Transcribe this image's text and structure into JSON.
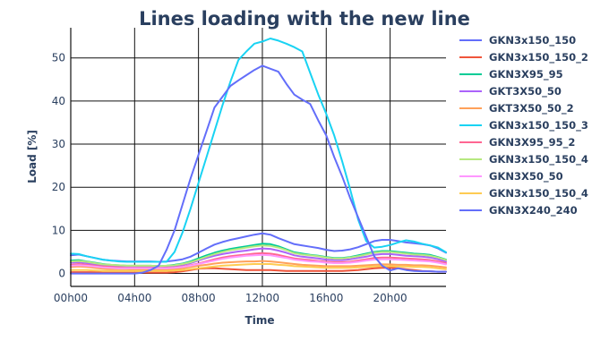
{
  "chart_data": {
    "type": "line",
    "title": "Lines loading with the new line",
    "xlabel": "Time",
    "ylabel": "Load [%]",
    "xlim": [
      0,
      23.5
    ],
    "ylim": [
      -3,
      57
    ],
    "x_ticks": [
      0,
      4,
      8,
      12,
      16,
      20
    ],
    "x_tick_labels": [
      "00h00",
      "04h00",
      "08h00",
      "12h00",
      "16h00",
      "20h00"
    ],
    "y_ticks": [
      0,
      10,
      20,
      30,
      40,
      50
    ],
    "y_tick_labels": [
      "0",
      "10",
      "20",
      "30",
      "40",
      "50"
    ],
    "grid": true,
    "legend_position": "right",
    "x": [
      0,
      0.5,
      1,
      1.5,
      2,
      2.5,
      3,
      3.5,
      4,
      4.5,
      5,
      5.5,
      6,
      6.5,
      7,
      7.5,
      8,
      8.5,
      9,
      9.5,
      10,
      10.5,
      11,
      11.5,
      12,
      12.5,
      13,
      13.5,
      14,
      14.5,
      15,
      15.5,
      16,
      16.5,
      17,
      17.5,
      18,
      18.5,
      19,
      19.5,
      20,
      20.5,
      21,
      21.5,
      22,
      22.5,
      23,
      23.5
    ],
    "series": [
      {
        "name": "GKN3x150_150",
        "color": "#636efa",
        "values": [
          4.2,
          4.4,
          4.0,
          3.6,
          3.2,
          3.0,
          2.9,
          2.8,
          2.8,
          2.8,
          2.8,
          2.7,
          2.8,
          3.0,
          3.3,
          3.9,
          4.8,
          5.8,
          6.7,
          7.3,
          7.8,
          8.2,
          8.6,
          9.0,
          9.3,
          9.0,
          8.2,
          7.5,
          6.8,
          6.5,
          6.2,
          5.9,
          5.5,
          5.2,
          5.3,
          5.6,
          6.1,
          6.8,
          7.5,
          7.8,
          7.8,
          7.5,
          7.2,
          7.0,
          6.8,
          6.5,
          5.8,
          4.8
        ]
      },
      {
        "name": "GKN3x150_150_2",
        "color": "#ef553b",
        "values": [
          0.3,
          0.3,
          0.3,
          0.3,
          0.2,
          0.2,
          0.2,
          0.2,
          0.2,
          0.2,
          0.2,
          0.2,
          0.2,
          0.3,
          0.5,
          0.8,
          1.1,
          1.2,
          1.2,
          1.1,
          1.0,
          0.9,
          0.8,
          0.8,
          0.8,
          0.8,
          0.7,
          0.6,
          0.6,
          0.6,
          0.6,
          0.6,
          0.6,
          0.6,
          0.6,
          0.7,
          0.8,
          1.0,
          1.2,
          1.3,
          1.3,
          1.2,
          1.0,
          0.8,
          0.6,
          0.5,
          0.4,
          0.4
        ]
      },
      {
        "name": "GKN3X95_95",
        "color": "#00cc96",
        "values": [
          3.0,
          3.1,
          2.8,
          2.5,
          2.2,
          2.0,
          1.9,
          1.8,
          1.8,
          1.8,
          1.8,
          1.7,
          1.8,
          2.0,
          2.3,
          2.8,
          3.5,
          4.2,
          4.8,
          5.3,
          5.7,
          6.0,
          6.3,
          6.6,
          6.9,
          6.8,
          6.3,
          5.6,
          4.9,
          4.6,
          4.3,
          4.1,
          3.8,
          3.6,
          3.6,
          3.8,
          4.2,
          4.6,
          5.0,
          5.2,
          5.2,
          5.0,
          4.8,
          4.6,
          4.5,
          4.3,
          3.8,
          3.2
        ]
      },
      {
        "name": "GKT3X50_50",
        "color": "#ab63fa",
        "values": [
          2.5,
          2.6,
          2.4,
          2.1,
          1.9,
          1.7,
          1.6,
          1.5,
          1.5,
          1.5,
          1.5,
          1.5,
          1.5,
          1.7,
          2.0,
          2.4,
          3.0,
          3.6,
          4.1,
          4.5,
          4.8,
          5.1,
          5.3,
          5.6,
          5.8,
          5.7,
          5.3,
          4.8,
          4.2,
          3.9,
          3.7,
          3.5,
          3.2,
          3.1,
          3.1,
          3.3,
          3.6,
          3.9,
          4.3,
          4.5,
          4.5,
          4.3,
          4.1,
          4.0,
          3.9,
          3.7,
          3.3,
          2.8
        ]
      },
      {
        "name": "GKT3X50_50_2",
        "color": "#ffa15a",
        "values": [
          1.5,
          1.6,
          1.5,
          1.3,
          1.1,
          1.0,
          1.0,
          1.0,
          0.9,
          0.9,
          0.9,
          0.9,
          0.9,
          1.0,
          1.2,
          1.5,
          1.8,
          2.0,
          2.3,
          2.5,
          2.6,
          2.7,
          2.8,
          2.8,
          2.9,
          2.8,
          2.6,
          2.4,
          2.2,
          2.0,
          1.9,
          1.8,
          1.7,
          1.7,
          1.7,
          1.7,
          1.8,
          1.9,
          2.0,
          2.1,
          2.1,
          2.0,
          2.0,
          1.9,
          1.9,
          1.8,
          1.6,
          1.4
        ]
      },
      {
        "name": "GKN3x150_150_3",
        "color": "#19d3f3",
        "values": [
          4.6,
          4.5,
          4.0,
          3.6,
          3.2,
          3.0,
          2.8,
          2.7,
          2.7,
          2.7,
          2.7,
          2.7,
          2.7,
          5.0,
          9.5,
          15.0,
          21.0,
          27.0,
          33.0,
          39.0,
          44.5,
          49.5,
          51.5,
          53.3,
          53.8,
          54.5,
          54.0,
          53.3,
          52.5,
          51.5,
          46.5,
          41.5,
          37.0,
          32.0,
          26.0,
          19.5,
          12.5,
          7.5,
          6.0,
          6.2,
          6.6,
          7.2,
          7.7,
          7.4,
          6.9,
          6.5,
          6.0,
          4.9
        ]
      },
      {
        "name": "GKN3X95_95_2",
        "color": "#ff6692",
        "values": [
          2.0,
          2.2,
          2.0,
          1.8,
          1.6,
          1.5,
          1.4,
          1.3,
          1.3,
          1.3,
          1.3,
          1.3,
          1.3,
          1.4,
          1.6,
          1.9,
          2.3,
          2.8,
          3.3,
          3.7,
          4.0,
          4.2,
          4.4,
          4.6,
          4.7,
          4.6,
          4.3,
          3.9,
          3.5,
          3.3,
          3.1,
          2.9,
          2.7,
          2.6,
          2.6,
          2.7,
          3.0,
          3.3,
          3.6,
          3.7,
          3.7,
          3.6,
          3.5,
          3.4,
          3.3,
          3.1,
          2.8,
          2.4
        ]
      },
      {
        "name": "GKN3x150_150_4",
        "color": "#b6e880",
        "values": [
          2.8,
          2.9,
          2.7,
          2.4,
          2.1,
          2.0,
          1.9,
          1.8,
          1.8,
          1.8,
          1.8,
          1.7,
          1.8,
          1.9,
          2.2,
          2.6,
          3.2,
          3.9,
          4.5,
          5.0,
          5.4,
          5.7,
          6.0,
          6.3,
          6.5,
          6.4,
          6.0,
          5.4,
          4.7,
          4.4,
          4.2,
          4.0,
          3.7,
          3.5,
          3.5,
          3.7,
          4.0,
          4.4,
          4.8,
          5.0,
          5.0,
          4.8,
          4.6,
          4.4,
          4.3,
          4.1,
          3.7,
          3.1
        ]
      },
      {
        "name": "GKN3X50_50",
        "color": "#ff97ff",
        "values": [
          1.8,
          1.9,
          1.8,
          1.6,
          1.4,
          1.3,
          1.2,
          1.2,
          1.2,
          1.2,
          1.2,
          1.2,
          1.2,
          1.3,
          1.5,
          1.8,
          2.2,
          2.6,
          3.0,
          3.4,
          3.7,
          3.9,
          4.1,
          4.2,
          4.3,
          4.2,
          3.9,
          3.6,
          3.2,
          3.0,
          2.8,
          2.7,
          2.5,
          2.4,
          2.4,
          2.5,
          2.7,
          3.0,
          3.2,
          3.3,
          3.3,
          3.2,
          3.1,
          3.0,
          2.9,
          2.8,
          2.5,
          2.1
        ]
      },
      {
        "name": "GKN3x150_150_4",
        "color": "#fecb52",
        "values": [
          0.8,
          0.8,
          0.8,
          0.7,
          0.6,
          0.6,
          0.6,
          0.6,
          0.6,
          0.6,
          0.6,
          0.6,
          0.6,
          0.7,
          0.8,
          1.0,
          1.2,
          1.4,
          1.6,
          1.8,
          1.9,
          2.0,
          2.1,
          2.2,
          2.2,
          2.2,
          2.0,
          1.9,
          1.7,
          1.6,
          1.5,
          1.4,
          1.3,
          1.3,
          1.3,
          1.3,
          1.4,
          1.5,
          1.6,
          1.7,
          1.7,
          1.6,
          1.6,
          1.5,
          1.5,
          1.4,
          1.2,
          1.0
        ]
      },
      {
        "name": "GKN3X240_240",
        "color": "#636efa",
        "values": [
          0.0,
          0.0,
          0.0,
          0.0,
          0.0,
          0.0,
          0.0,
          0.0,
          0.0,
          0.2,
          0.8,
          1.8,
          5.5,
          10.0,
          16.0,
          22.0,
          27.5,
          33.0,
          38.5,
          41.0,
          43.5,
          44.8,
          46.0,
          47.2,
          48.2,
          47.5,
          46.8,
          44.0,
          41.5,
          40.3,
          39.3,
          35.5,
          32.0,
          27.0,
          22.5,
          17.5,
          13.0,
          8.5,
          4.0,
          1.8,
          0.7,
          1.2,
          0.8,
          0.6,
          0.5,
          0.5,
          0.4,
          0.4
        ]
      }
    ]
  }
}
